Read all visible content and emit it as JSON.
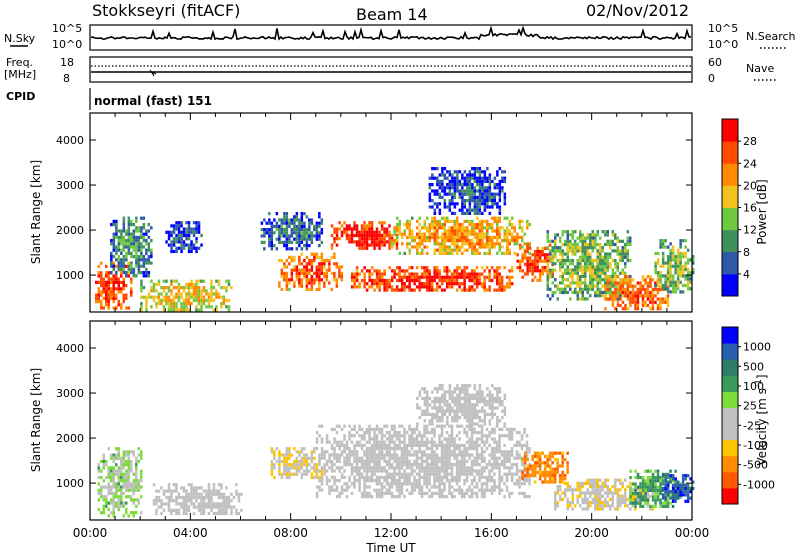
{
  "header": {
    "station": "Stokkseyri (fitACF)",
    "beam": "Beam 14",
    "date": "02/Nov/2012"
  },
  "noise_panel": {
    "left_label": "N.Sky",
    "right_label": "N.Search",
    "left_ticks": [
      "10^5",
      "10^0"
    ],
    "right_ticks": [
      "10^5",
      "10^0"
    ]
  },
  "freq_panel": {
    "left_label_1": "Freq.",
    "left_label_2": "[MHz]",
    "right_label": "Nave",
    "left_ticks": [
      "18",
      "8"
    ],
    "right_ticks": [
      "60",
      "0"
    ]
  },
  "cpid_panel": {
    "label": "CPID",
    "mode": "normal (fast) 151"
  },
  "colors": {
    "power_scale": [
      "#0000ff",
      "#2f58a8",
      "#3f8f5f",
      "#6fc83f",
      "#f2c21f",
      "#ff8a00",
      "#ff4a00",
      "#ff0000"
    ],
    "velocity_scale": [
      "#ff0000",
      "#ff5a00",
      "#ff8c00",
      "#ffc400",
      "#c0c0c0",
      "#c0c0c0",
      "#7ddc3a",
      "#3a9a5a",
      "#2e7d6a",
      "#2a5fb0",
      "#0000ff"
    ],
    "ground_scatter": "#bfbfbf"
  },
  "chart_data": [
    {
      "type": "heatmap",
      "title": "",
      "xlabel": "",
      "ylabel": "Slant Range [km]",
      "x_ticks": [
        "00:00",
        "04:00",
        "08:00",
        "12:00",
        "16:00",
        "20:00",
        "00:00"
      ],
      "y_ticks": [
        "1000",
        "2000",
        "3000",
        "4000"
      ],
      "xlim_hours": [
        0,
        24
      ],
      "ylim_km": [
        180,
        4600
      ],
      "colorbar": {
        "label": "Power [dB]",
        "ticks": [
          "28",
          "24",
          "20",
          "16",
          "12",
          "8",
          "4"
        ],
        "range": [
          0,
          30
        ]
      },
      "echo_regions": [
        {
          "t0": 0.2,
          "t1": 1.6,
          "r0": 250,
          "r1": 1300,
          "power_db": 26
        },
        {
          "t0": 0.8,
          "t1": 2.4,
          "r0": 1000,
          "r1": 2300,
          "power_db": 10
        },
        {
          "t0": 2.0,
          "t1": 5.6,
          "r0": 250,
          "r1": 900,
          "power_db": 18
        },
        {
          "t0": 3.0,
          "t1": 4.4,
          "r0": 1500,
          "r1": 2200,
          "power_db": 6
        },
        {
          "t0": 6.8,
          "t1": 9.2,
          "r0": 1600,
          "r1": 2400,
          "power_db": 8
        },
        {
          "t0": 7.5,
          "t1": 10.0,
          "r0": 700,
          "r1": 1500,
          "power_db": 24
        },
        {
          "t0": 9.6,
          "t1": 12.2,
          "r0": 1600,
          "r1": 2200,
          "power_db": 28
        },
        {
          "t0": 10.4,
          "t1": 16.8,
          "r0": 650,
          "r1": 1200,
          "power_db": 27
        },
        {
          "t0": 12.0,
          "t1": 17.5,
          "r0": 1500,
          "r1": 2300,
          "power_db": 20
        },
        {
          "t0": 13.5,
          "t1": 16.5,
          "r0": 2400,
          "r1": 3400,
          "power_db": 6
        },
        {
          "t0": 17.0,
          "t1": 18.4,
          "r0": 900,
          "r1": 1700,
          "power_db": 26
        },
        {
          "t0": 18.2,
          "t1": 21.5,
          "r0": 500,
          "r1": 2000,
          "power_db": 14
        },
        {
          "t0": 20.5,
          "t1": 23.0,
          "r0": 250,
          "r1": 1000,
          "power_db": 24
        },
        {
          "t0": 22.5,
          "t1": 24.0,
          "r0": 600,
          "r1": 1800,
          "power_db": 14
        }
      ]
    },
    {
      "type": "heatmap",
      "title": "",
      "xlabel": "Time UT",
      "ylabel": "Slant Range [km]",
      "x_ticks": [
        "00:00",
        "04:00",
        "08:00",
        "12:00",
        "16:00",
        "20:00",
        "00:00"
      ],
      "y_ticks": [
        "1000",
        "2000",
        "3000",
        "4000"
      ],
      "xlim_hours": [
        0,
        24
      ],
      "ylim_km": [
        180,
        4600
      ],
      "colorbar": {
        "label": "Velocity [m s^-1]",
        "label_text": "Velocity",
        "label_unit": "[m s",
        "label_exp": "-1",
        "label_close": "]",
        "ticks": [
          "1000",
          "500",
          "100",
          "25",
          "-25",
          "-100",
          "-500",
          "-1000"
        ],
        "range": [
          -1200,
          1200
        ]
      },
      "echo_regions": [
        {
          "t0": 0.3,
          "t1": 2.0,
          "r0": 300,
          "r1": 1800,
          "velocity": 150
        },
        {
          "t0": 2.5,
          "t1": 6.0,
          "r0": 300,
          "r1": 1000,
          "velocity": 0,
          "ground": true
        },
        {
          "t0": 7.2,
          "t1": 9.2,
          "r0": 1100,
          "r1": 1800,
          "velocity": -300
        },
        {
          "t0": 9.0,
          "t1": 17.5,
          "r0": 700,
          "r1": 2300,
          "velocity": 0,
          "ground": true
        },
        {
          "t0": 13.0,
          "t1": 16.5,
          "r0": 2300,
          "r1": 3200,
          "velocity": 0,
          "ground": true
        },
        {
          "t0": 17.2,
          "t1": 19.0,
          "r0": 1000,
          "r1": 1700,
          "velocity": -700
        },
        {
          "t0": 18.5,
          "t1": 22.5,
          "r0": 400,
          "r1": 1100,
          "velocity": -250
        },
        {
          "t0": 21.5,
          "t1": 23.5,
          "r0": 500,
          "r1": 1300,
          "velocity": 400
        },
        {
          "t0": 22.8,
          "t1": 24.0,
          "r0": 600,
          "r1": 1200,
          "velocity": 900
        }
      ]
    }
  ]
}
